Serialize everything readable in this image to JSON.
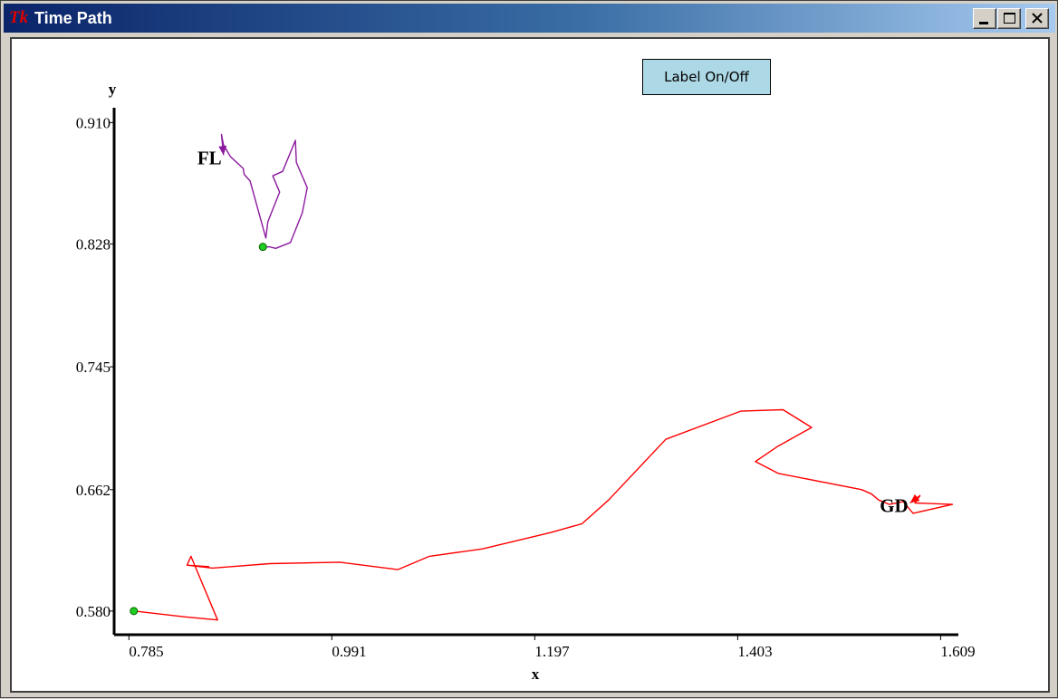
{
  "window": {
    "title": "Time Path",
    "icon": "tk-feather-icon",
    "logo_text": "Tk"
  },
  "controls": {
    "minimize_icon": "minimize-icon",
    "maximize_icon": "maximize-icon",
    "close_icon": "close-icon"
  },
  "toggle_button": {
    "label": "Label On/Off"
  },
  "chart_data": {
    "type": "line",
    "xlabel": "x",
    "ylabel": "y",
    "xlim": [
      0.77,
      1.627
    ],
    "ylim": [
      0.564,
      0.92
    ],
    "x_ticks": [
      "0.785",
      "0.991",
      "1.197",
      "1.403",
      "1.609"
    ],
    "y_ticks": [
      "0.580",
      "0.662",
      "0.745",
      "0.828",
      "0.910"
    ],
    "grid": false,
    "series": [
      {
        "name": "FL",
        "color": "#8b1a9e",
        "start_marker_color": "#22cc22",
        "x": [
          0.921,
          0.928,
          0.934,
          0.949,
          0.961,
          0.966,
          0.955,
          0.954,
          0.941,
          0.931,
          0.938,
          0.926,
          0.924,
          0.908,
          0.902,
          0.901,
          0.888,
          0.881,
          0.879,
          0.881
        ],
        "y": [
          0.826,
          0.826,
          0.825,
          0.829,
          0.849,
          0.866,
          0.883,
          0.898,
          0.877,
          0.874,
          0.863,
          0.843,
          0.832,
          0.8705,
          0.875,
          0.879,
          0.887,
          0.895,
          0.902,
          0.888
        ]
      },
      {
        "name": "GD",
        "color": "#ff0000",
        "start_marker_color": "#22cc22",
        "x": [
          0.79,
          0.843,
          0.875,
          0.848,
          0.844,
          0.866,
          0.844,
          0.87,
          0.928,
          0.999,
          1.058,
          1.09,
          1.144,
          1.213,
          1.245,
          1.272,
          1.33,
          1.406,
          1.449,
          1.478,
          1.443,
          1.421,
          1.444,
          1.529,
          1.539,
          1.546,
          1.557,
          1.571,
          1.581,
          1.621,
          1.583,
          1.588,
          1.578
        ],
        "y": [
          0.58,
          0.576,
          0.574,
          0.617,
          0.611,
          0.61,
          0.611,
          0.609,
          0.612,
          0.613,
          0.608,
          0.617,
          0.622,
          0.633,
          0.639,
          0.655,
          0.696,
          0.715,
          0.716,
          0.704,
          0.691,
          0.681,
          0.673,
          0.662,
          0.659,
          0.655,
          0.652,
          0.654,
          0.646,
          0.652,
          0.653,
          0.658,
          0.653
        ]
      }
    ]
  }
}
